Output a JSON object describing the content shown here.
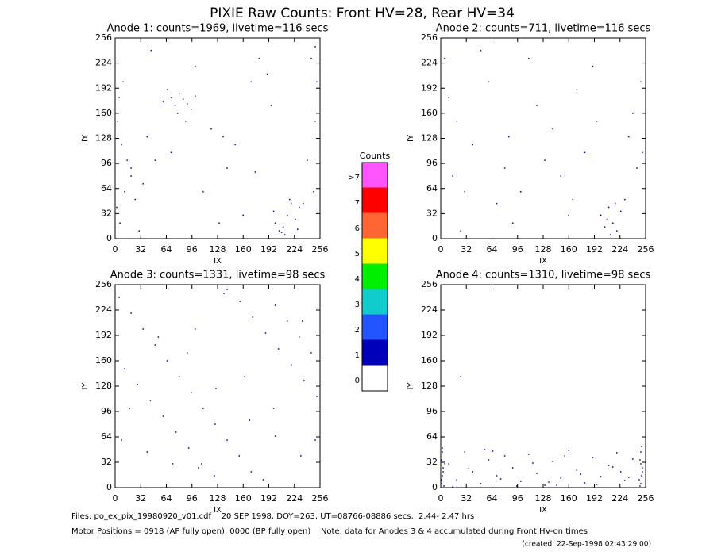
{
  "title": "PIXIE Raw Counts:  Front HV=28, Rear HV=34",
  "chart_data": [
    {
      "type": "scatter",
      "title": "Anode 1: counts=1969, livetime=116 secs",
      "xlabel": "IX",
      "ylabel": "IY",
      "color": "#0000aa",
      "xlim": [
        0,
        256
      ],
      "ylim": [
        0,
        256
      ],
      "xticks": [
        0,
        32,
        64,
        96,
        128,
        160,
        192,
        224,
        256
      ],
      "yticks": [
        0,
        32,
        64,
        96,
        128,
        160,
        192,
        224,
        256
      ],
      "x": [
        10,
        5,
        3,
        8,
        15,
        20,
        12,
        2,
        6,
        30,
        45,
        60,
        70,
        75,
        80,
        85,
        90,
        95,
        100,
        65,
        78,
        88,
        120,
        135,
        150,
        170,
        180,
        190,
        200,
        205,
        210,
        215,
        220,
        225,
        230,
        212,
        218,
        198,
        208,
        228,
        240,
        250,
        252,
        248,
        245,
        110,
        140,
        160,
        50,
        35,
        25,
        130,
        175,
        235,
        195,
        100,
        70,
        40,
        20,
        250
      ],
      "y": [
        200,
        180,
        150,
        120,
        100,
        80,
        60,
        40,
        20,
        10,
        240,
        175,
        180,
        170,
        185,
        178,
        172,
        165,
        182,
        190,
        160,
        150,
        140,
        130,
        120,
        200,
        230,
        210,
        20,
        10,
        15,
        30,
        45,
        25,
        40,
        5,
        50,
        35,
        8,
        12,
        100,
        150,
        200,
        60,
        230,
        60,
        90,
        30,
        100,
        70,
        50,
        20,
        85,
        45,
        170,
        220,
        110,
        130,
        90,
        245
      ]
    },
    {
      "type": "scatter",
      "title": "Anode 2: counts=711, livetime=116 secs",
      "xlabel": "IX",
      "ylabel": "IY",
      "color": "#0000aa",
      "xlim": [
        0,
        256
      ],
      "ylim": [
        0,
        256
      ],
      "xticks": [
        0,
        32,
        64,
        96,
        128,
        160,
        192,
        224,
        256
      ],
      "yticks": [
        0,
        32,
        64,
        96,
        128,
        160,
        192,
        224,
        256
      ],
      "x": [
        5,
        10,
        20,
        40,
        60,
        80,
        100,
        120,
        140,
        160,
        180,
        200,
        205,
        210,
        215,
        220,
        225,
        212,
        208,
        230,
        240,
        250,
        245,
        30,
        50,
        90,
        130,
        170,
        190,
        235,
        15,
        70,
        110,
        150,
        195,
        25,
        85,
        165,
        218,
        252
      ],
      "y": [
        230,
        180,
        150,
        120,
        200,
        90,
        60,
        170,
        140,
        30,
        110,
        30,
        15,
        40,
        20,
        10,
        35,
        5,
        25,
        50,
        160,
        200,
        90,
        60,
        240,
        20,
        100,
        190,
        220,
        130,
        80,
        45,
        230,
        80,
        150,
        10,
        130,
        50,
        45,
        110
      ]
    },
    {
      "type": "scatter",
      "title": "Anode 3: counts=1331, livetime=98 secs",
      "xlabel": "IX",
      "ylabel": "IY",
      "color": "#0000aa",
      "xlim": [
        0,
        256
      ],
      "ylim": [
        0,
        256
      ],
      "xticks": [
        0,
        32,
        64,
        96,
        128,
        160,
        192,
        224,
        256
      ],
      "yticks": [
        0,
        32,
        64,
        96,
        128,
        160,
        192,
        224,
        256
      ],
      "x": [
        5,
        20,
        35,
        50,
        65,
        80,
        95,
        110,
        125,
        140,
        155,
        170,
        185,
        200,
        215,
        230,
        245,
        12,
        28,
        44,
        60,
        76,
        92,
        108,
        124,
        140,
        156,
        172,
        188,
        204,
        220,
        236,
        252,
        8,
        40,
        72,
        104,
        136,
        168,
        200,
        232,
        18,
        54,
        90,
        126,
        162,
        198,
        234,
        250,
        100
      ],
      "y": [
        240,
        220,
        200,
        180,
        160,
        140,
        120,
        100,
        80,
        60,
        40,
        20,
        10,
        230,
        210,
        190,
        170,
        150,
        130,
        110,
        90,
        70,
        50,
        30,
        15,
        250,
        235,
        215,
        195,
        175,
        155,
        135,
        115,
        60,
        45,
        30,
        25,
        245,
        85,
        65,
        40,
        100,
        190,
        170,
        125,
        140,
        100,
        210,
        60,
        200
      ]
    },
    {
      "type": "scatter",
      "title": "Anode 4: counts=1310, livetime=98 secs",
      "xlabel": "IX",
      "ylabel": "IY",
      "color": "#0000aa",
      "xlim": [
        0,
        256
      ],
      "ylim": [
        0,
        256
      ],
      "xticks": [
        0,
        32,
        64,
        96,
        128,
        160,
        192,
        224,
        256
      ],
      "yticks": [
        0,
        32,
        64,
        96,
        128,
        160,
        192,
        224,
        256
      ],
      "x": [
        1,
        2,
        3,
        1,
        2,
        4,
        1,
        3,
        5,
        2,
        250,
        251,
        252,
        249,
        250,
        251,
        248,
        252,
        250,
        249,
        10,
        20,
        30,
        40,
        50,
        60,
        70,
        80,
        90,
        100,
        110,
        120,
        130,
        140,
        150,
        160,
        170,
        180,
        190,
        200,
        210,
        220,
        230,
        240,
        15,
        35,
        55,
        75,
        95,
        115,
        135,
        155,
        175,
        195,
        215,
        235,
        25,
        65,
        145,
        225
      ],
      "y": [
        5,
        15,
        25,
        35,
        45,
        2,
        10,
        20,
        30,
        50,
        5,
        15,
        25,
        35,
        45,
        52,
        10,
        20,
        30,
        2,
        30,
        10,
        45,
        20,
        5,
        35,
        15,
        40,
        25,
        8,
        42,
        18,
        3,
        33,
        12,
        47,
        22,
        6,
        38,
        14,
        28,
        44,
        9,
        36,
        1,
        24,
        48,
        11,
        2,
        31,
        7,
        40,
        17,
        4,
        26,
        13,
        140,
        46,
        3,
        20
      ]
    }
  ],
  "colorbar": {
    "title": "Counts",
    "labels": [
      ">7",
      "7",
      "6",
      "5",
      "4",
      "3",
      "2",
      "1",
      "0"
    ],
    "colors": [
      "#ff55ff",
      "#ff0000",
      "#ff6633",
      "#ffff00",
      "#00ee00",
      "#11cccc",
      "#2255ff",
      "#0000bb",
      "#ffffff"
    ]
  },
  "footer": {
    "files": "Files: po_ex_pix_19980920_v01.cdf    20 SEP 1998, DOY=263, UT=08766-08886 secs,  2.44- 2.47 hrs",
    "motor": "Motor Positions = 0918 (AP fully open), 0000 (BP fully open)    Note: data for Anodes 3 & 4 accumulated during Front HV-on times",
    "created": "(created: 22-Sep-1998 02:43:29.00)"
  }
}
